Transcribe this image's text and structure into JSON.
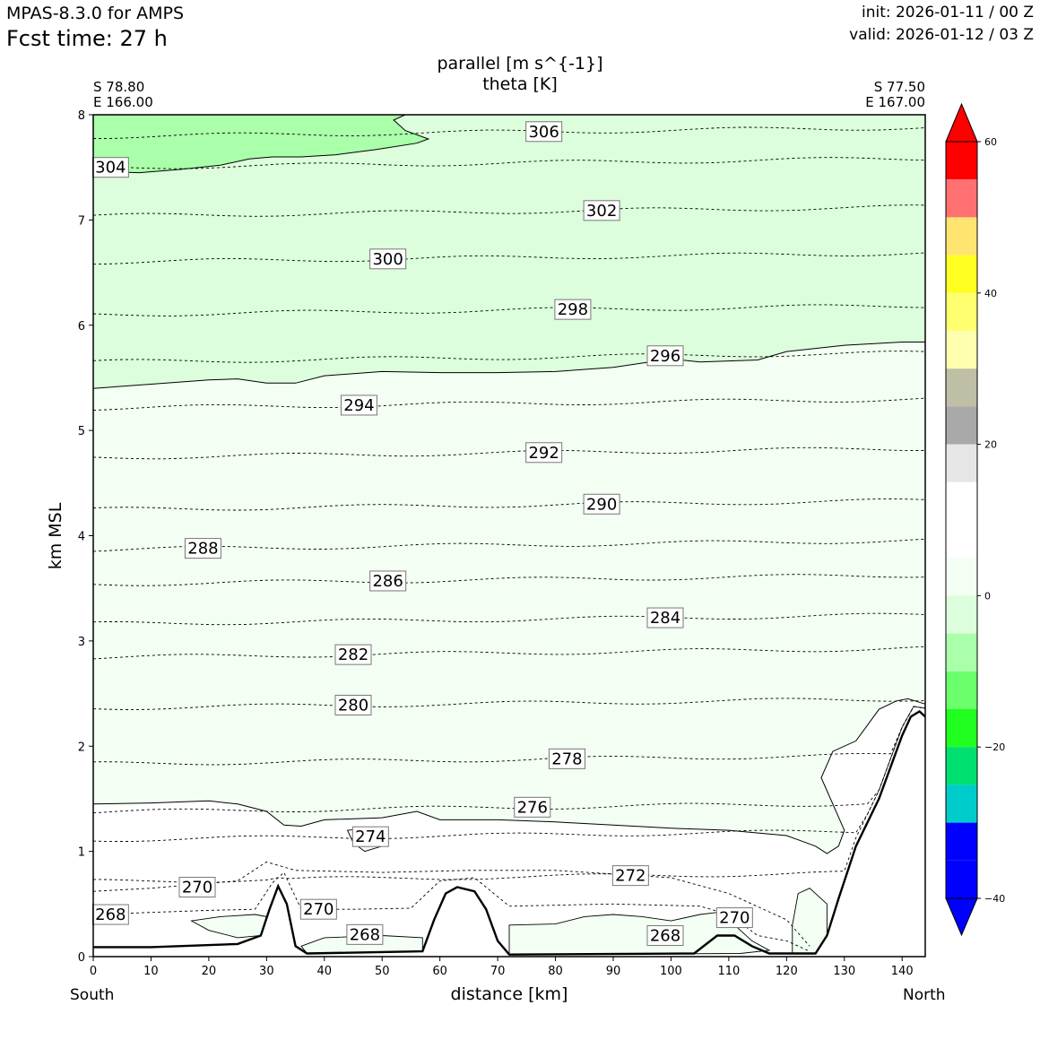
{
  "header": {
    "model": "MPAS-8.3.0 for AMPS",
    "fcst_time": "Fcst time:   27 h",
    "init": "init: 2026-01-11 / 00 Z",
    "valid": "valid: 2026-01-12 / 03 Z"
  },
  "chart_data": {
    "type": "contour",
    "title": "parallel [m s^{-1}]",
    "subtitle": "theta [K]",
    "xlabel": "distance [km]",
    "ylabel": "km MSL",
    "xlim": [
      0,
      144
    ],
    "ylim": [
      0,
      8
    ],
    "x_ticks": [
      "0",
      "10",
      "20",
      "30",
      "40",
      "50",
      "60",
      "70",
      "80",
      "90",
      "100",
      "110",
      "120",
      "130",
      "140"
    ],
    "y_ticks": [
      "0",
      "1",
      "2",
      "3",
      "4",
      "5",
      "6",
      "7",
      "8"
    ],
    "left_endpoint": {
      "lat": "S 78.80",
      "lon": "E 166.00",
      "label": "South"
    },
    "right_endpoint": {
      "lat": "S 77.50",
      "lon": "E 167.00",
      "label": "North"
    },
    "theta_contours": [
      {
        "value": "268",
        "x": 3,
        "y": 0.4
      },
      {
        "value": "268",
        "x": 47,
        "y": 0.21
      },
      {
        "value": "268",
        "x": 99,
        "y": 0.2
      },
      {
        "value": "270",
        "x": 18,
        "y": 0.66
      },
      {
        "value": "270",
        "x": 39,
        "y": 0.45
      },
      {
        "value": "270",
        "x": 111,
        "y": 0.37
      },
      {
        "value": "272",
        "x": 93,
        "y": 0.77
      },
      {
        "value": "274",
        "x": 48,
        "y": 1.14
      },
      {
        "value": "276",
        "x": 76,
        "y": 1.42
      },
      {
        "value": "278",
        "x": 82,
        "y": 1.88
      },
      {
        "value": "280",
        "x": 45,
        "y": 2.39
      },
      {
        "value": "282",
        "x": 45,
        "y": 2.87
      },
      {
        "value": "284",
        "x": 99,
        "y": 3.22
      },
      {
        "value": "286",
        "x": 51,
        "y": 3.57
      },
      {
        "value": "288",
        "x": 19,
        "y": 3.88
      },
      {
        "value": "290",
        "x": 88,
        "y": 4.3
      },
      {
        "value": "292",
        "x": 78,
        "y": 4.79
      },
      {
        "value": "294",
        "x": 46,
        "y": 5.24
      },
      {
        "value": "296",
        "x": 99,
        "y": 5.71
      },
      {
        "value": "298",
        "x": 83,
        "y": 6.15
      },
      {
        "value": "300",
        "x": 51,
        "y": 6.63
      },
      {
        "value": "302",
        "x": 88,
        "y": 7.09
      },
      {
        "value": "304",
        "x": 3,
        "y": 7.5
      },
      {
        "value": "306",
        "x": 78,
        "y": 7.84
      }
    ],
    "terrain": [
      [
        0,
        0.09
      ],
      [
        10,
        0.09
      ],
      [
        25,
        0.12
      ],
      [
        29,
        0.2
      ],
      [
        30.5,
        0.45
      ],
      [
        32,
        0.67
      ],
      [
        33.5,
        0.5
      ],
      [
        35,
        0.1
      ],
      [
        37,
        0.03
      ],
      [
        57,
        0.05
      ],
      [
        59,
        0.35
      ],
      [
        61,
        0.6
      ],
      [
        63,
        0.66
      ],
      [
        66,
        0.62
      ],
      [
        68,
        0.45
      ],
      [
        70,
        0.15
      ],
      [
        72,
        0.02
      ],
      [
        104,
        0.03
      ],
      [
        108,
        0.2
      ],
      [
        111,
        0.2
      ],
      [
        114,
        0.1
      ],
      [
        117,
        0.03
      ],
      [
        125,
        0.03
      ],
      [
        127,
        0.2
      ],
      [
        129,
        0.55
      ],
      [
        132,
        1.05
      ],
      [
        136,
        1.5
      ],
      [
        138,
        1.8
      ],
      [
        140,
        2.1
      ],
      [
        141.5,
        2.28
      ],
      [
        143,
        2.33
      ],
      [
        144,
        2.28
      ]
    ],
    "colorbar": {
      "ticks": [
        "60",
        "40",
        "20",
        "0",
        "−20",
        "−40"
      ],
      "colors": [
        "#ff0000",
        "#ff7070",
        "#ffe570",
        "#ffff20",
        "#ffff70",
        "#ffffb0",
        "#bfbfa6",
        "#a9a9a9",
        "#e6e6e6",
        "#ffffff",
        "#ffffff",
        "#f2fff2",
        "#dcfedc",
        "#aaffaa",
        "#6bff6b",
        "#20ff20",
        "#00e070",
        "#00cccc",
        "#0000ff",
        "#0000ff"
      ],
      "top_color": "#ff0000",
      "bottom_color": "#0000ff"
    },
    "fill_colors": {
      "upper": "#dcfedc",
      "mid": "#f2fff2",
      "top_patch": "#aaffaa",
      "low": "#ffffff"
    }
  }
}
